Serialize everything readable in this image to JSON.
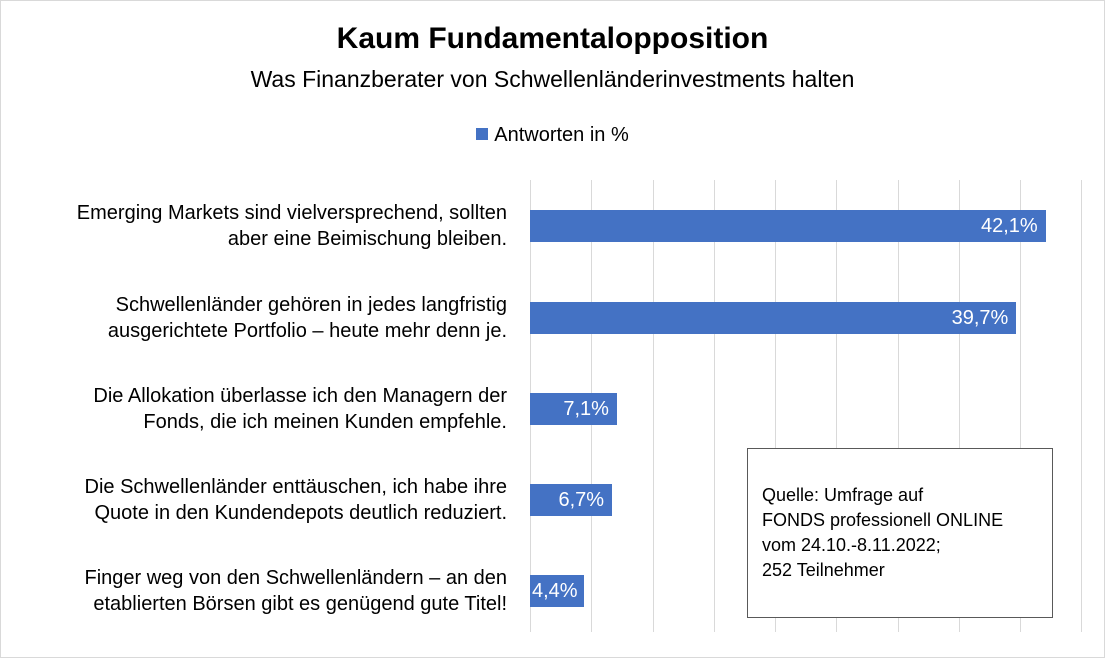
{
  "chart_data": {
    "type": "bar",
    "orientation": "horizontal",
    "title": "Kaum Fundamentalopposition",
    "subtitle": "Was Finanzberater von Schwellenländerinvestments halten",
    "legend": {
      "position": "top",
      "entries": [
        "Antworten in %"
      ]
    },
    "categories": [
      "Emerging Markets sind vielversprechend, sollten\naber eine Beimischung bleiben.",
      "Schwellenländer gehören in jedes langfristig\nausgerichtete Portfolio – heute mehr denn je.",
      "Die Allokation überlasse ich den Managern der\nFonds, die ich meinen Kunden empfehle.",
      "Die Schwellenländer enttäuschen, ich habe ihre\nQuote in den Kundendepots deutlich reduziert.",
      "Finger weg von den Schwellenländern – an den\netablierten Börsen gibt es genügend gute Titel!"
    ],
    "series": [
      {
        "name": "Antworten in %",
        "values": [
          42.1,
          39.7,
          7.1,
          6.7,
          4.4
        ],
        "labels": [
          "42,1%",
          "39,7%",
          "7,1%",
          "6,7%",
          "4,4%"
        ]
      }
    ],
    "xlim": [
      0,
      45
    ],
    "grid": true,
    "bar_color": "#4472c4"
  },
  "source_note": "Quelle:  Umfrage auf\nFONDS professionell  ONLINE\nvom 24.10.-8.11.2022;\n252 Teilnehmer"
}
